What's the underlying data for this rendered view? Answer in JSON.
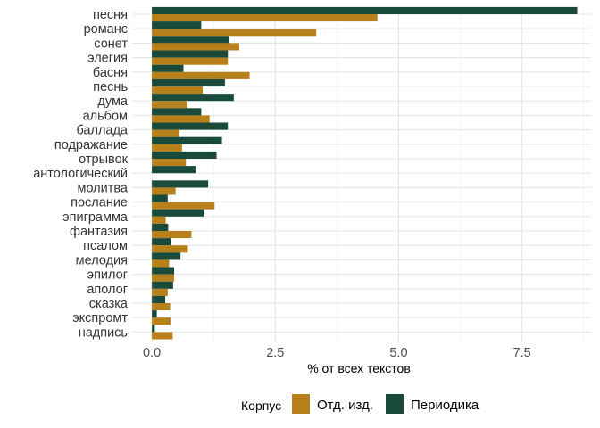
{
  "chart_data": {
    "type": "bar",
    "orientation": "horizontal",
    "categories": [
      "песня",
      "романс",
      "сонет",
      "элегия",
      "басня",
      "песнь",
      "дума",
      "альбом",
      "баллада",
      "подражание",
      "отрывок",
      "антологический",
      "молитва",
      "послание",
      "эпиграмма",
      "фантазия",
      "псалом",
      "мелодия",
      "эпилог",
      "аполог",
      "сказка",
      "экспромт",
      "надпись"
    ],
    "series": [
      {
        "name": "Отд. изд.",
        "color": "#b8801a",
        "values": [
          4.57,
          3.33,
          1.77,
          1.54,
          1.98,
          1.03,
          0.72,
          1.17,
          0.56,
          0.61,
          0.69,
          0.0,
          0.48,
          1.27,
          0.28,
          0.8,
          0.73,
          0.35,
          0.45,
          0.32,
          0.37,
          0.38,
          0.42
        ]
      },
      {
        "name": "Периодика",
        "color": "#1a4a3c",
        "values": [
          8.62,
          1.0,
          1.57,
          1.54,
          0.64,
          1.48,
          1.66,
          1.0,
          1.54,
          1.42,
          1.31,
          0.89,
          1.14,
          0.32,
          1.05,
          0.33,
          0.38,
          0.58,
          0.45,
          0.43,
          0.27,
          0.1,
          0.06
        ]
      }
    ],
    "xlabel": "% от всех текстов",
    "ylabel": "",
    "xlim": [
      -0.4,
      8.9
    ],
    "xticks": [
      0,
      2.5,
      5,
      7.5
    ],
    "xtick_labels": [
      "0.0",
      "2.5",
      "5.0",
      "7.5"
    ],
    "grid": true,
    "legend": {
      "title": "Корпус",
      "placement": "bottom"
    }
  }
}
